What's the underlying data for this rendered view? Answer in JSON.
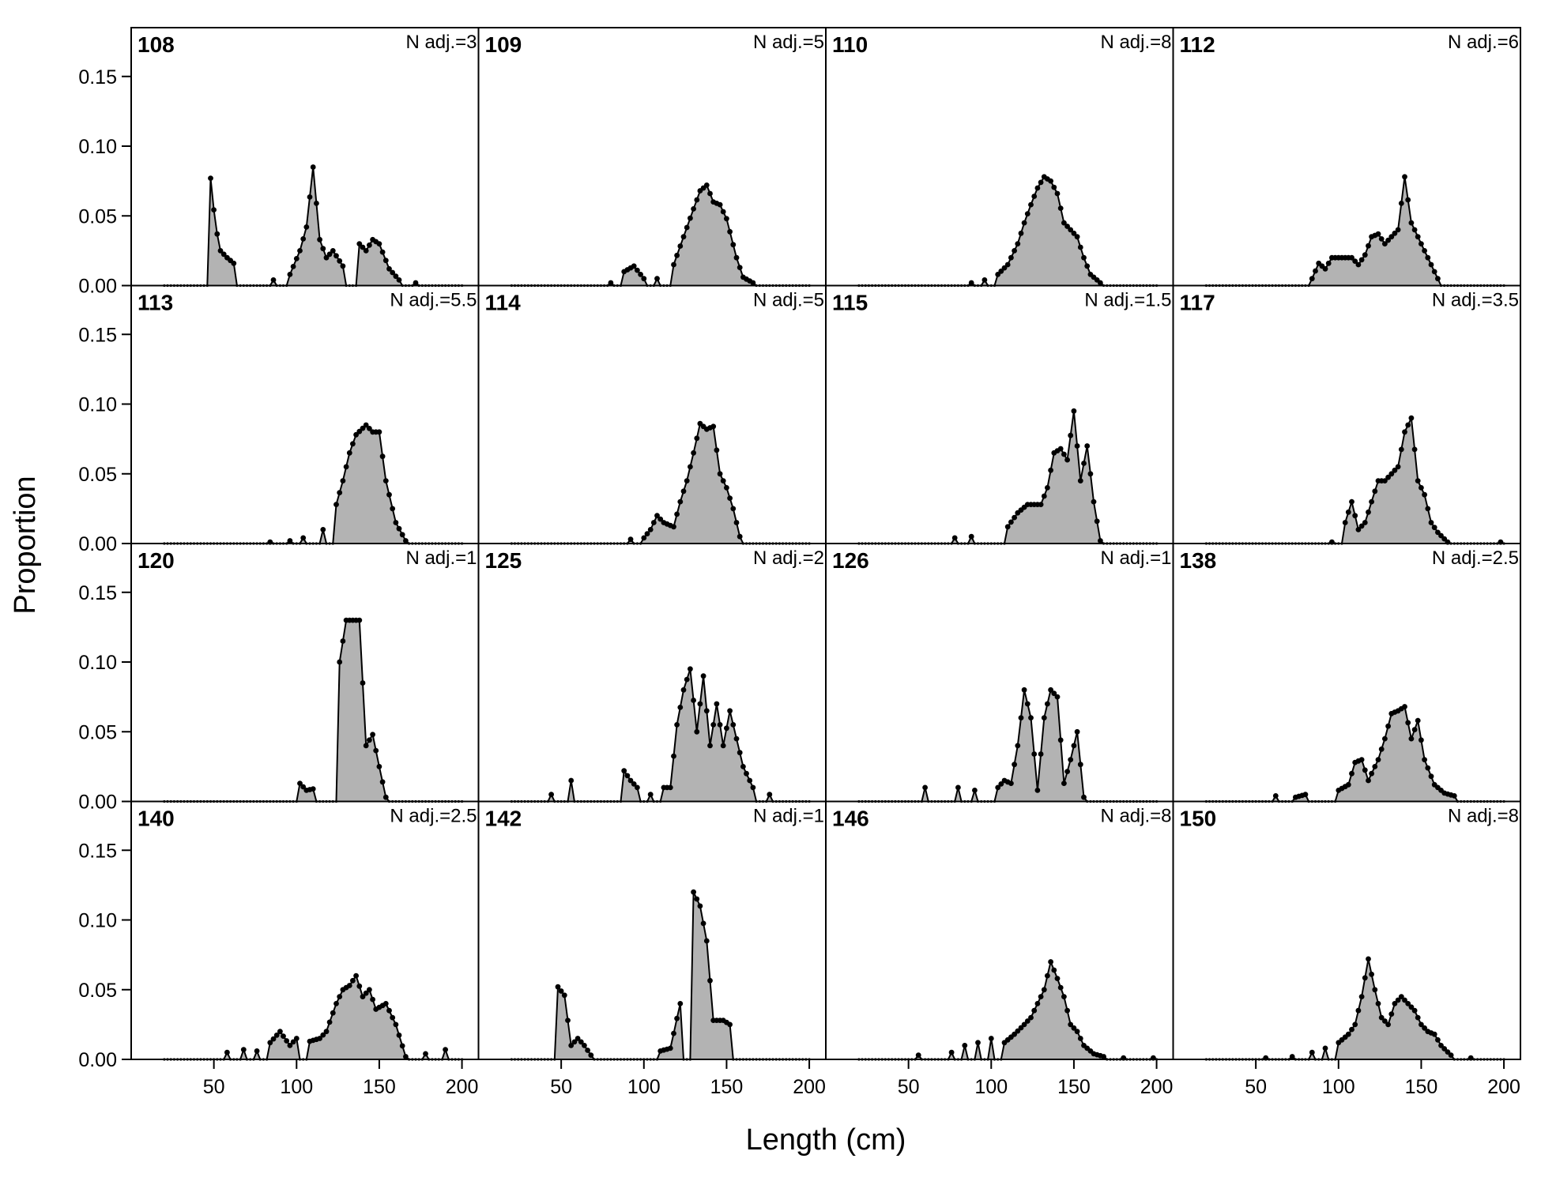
{
  "chart_data": {
    "type": "area",
    "layout": "4x4 small multiples",
    "xlabel": "Length (cm)",
    "ylabel": "Proportion",
    "xlim": [
      0,
      210
    ],
    "ylim": [
      0,
      0.185
    ],
    "x_ticks": [
      50,
      100,
      150,
      200
    ],
    "x_tick_labels": [
      "50",
      "100",
      "150",
      "200"
    ],
    "y_ticks": [
      0,
      0.05,
      0.1,
      0.15
    ],
    "y_tick_labels": [
      "0.00",
      "0.05",
      "0.10",
      "0.15"
    ],
    "x_start": 20,
    "x_end": 200,
    "x_step": 2,
    "fill_color": "#b3b3b3",
    "line_color": "#000000",
    "panels": [
      {
        "id": "108",
        "nadj": "N adj.=3",
        "peaks": [
          [
            48,
            0.077
          ],
          [
            51,
            0.043
          ],
          [
            54,
            0.025
          ],
          [
            58,
            0.02
          ],
          [
            62,
            0.016
          ],
          [
            86,
            0.004
          ],
          [
            96,
            0.008
          ],
          [
            102,
            0.025
          ],
          [
            106,
            0.042
          ],
          [
            110,
            0.085
          ],
          [
            114,
            0.033
          ],
          [
            118,
            0.02
          ],
          [
            122,
            0.025
          ],
          [
            128,
            0.014
          ],
          [
            138,
            0.03
          ],
          [
            142,
            0.025
          ],
          [
            146,
            0.033
          ],
          [
            150,
            0.03
          ],
          [
            156,
            0.012
          ],
          [
            162,
            0.004
          ],
          [
            172,
            0.002
          ]
        ]
      },
      {
        "id": "113",
        "nadj": "N adj.=5.5",
        "peaks": [
          [
            84,
            0.001
          ],
          [
            96,
            0.002
          ],
          [
            104,
            0.004
          ],
          [
            116,
            0.01
          ],
          [
            124,
            0.028
          ],
          [
            128,
            0.045
          ],
          [
            132,
            0.065
          ],
          [
            136,
            0.078
          ],
          [
            142,
            0.085
          ],
          [
            146,
            0.08
          ],
          [
            150,
            0.08
          ],
          [
            154,
            0.045
          ],
          [
            160,
            0.015
          ],
          [
            166,
            0.002
          ]
        ]
      },
      {
        "id": "120",
        "nadj": "N adj.=1",
        "peaks": [
          [
            102,
            0.013
          ],
          [
            106,
            0.008
          ],
          [
            110,
            0.009
          ],
          [
            126,
            0.1
          ],
          [
            130,
            0.13
          ],
          [
            134,
            0.13
          ],
          [
            138,
            0.13
          ],
          [
            142,
            0.04
          ],
          [
            146,
            0.048
          ],
          [
            150,
            0.025
          ],
          [
            154,
            0.003
          ]
        ]
      },
      {
        "id": "140",
        "nadj": "N adj.=2.5",
        "peaks": [
          [
            58,
            0.005
          ],
          [
            68,
            0.007
          ],
          [
            76,
            0.006
          ],
          [
            84,
            0.012
          ],
          [
            90,
            0.02
          ],
          [
            96,
            0.01
          ],
          [
            100,
            0.015
          ],
          [
            108,
            0.013
          ],
          [
            114,
            0.015
          ],
          [
            118,
            0.02
          ],
          [
            124,
            0.04
          ],
          [
            128,
            0.05
          ],
          [
            132,
            0.053
          ],
          [
            136,
            0.06
          ],
          [
            140,
            0.045
          ],
          [
            144,
            0.05
          ],
          [
            148,
            0.036
          ],
          [
            154,
            0.04
          ],
          [
            160,
            0.025
          ],
          [
            166,
            0.002
          ],
          [
            178,
            0.004
          ],
          [
            190,
            0.007
          ]
        ]
      },
      {
        "id": "109",
        "nadj": "N adj.=5",
        "peaks": [
          [
            80,
            0.002
          ],
          [
            88,
            0.01
          ],
          [
            94,
            0.014
          ],
          [
            100,
            0.005
          ],
          [
            108,
            0.005
          ],
          [
            118,
            0.015
          ],
          [
            124,
            0.035
          ],
          [
            130,
            0.055
          ],
          [
            134,
            0.068
          ],
          [
            138,
            0.072
          ],
          [
            142,
            0.06
          ],
          [
            146,
            0.058
          ],
          [
            150,
            0.048
          ],
          [
            156,
            0.02
          ],
          [
            160,
            0.006
          ],
          [
            166,
            0.002
          ]
        ]
      },
      {
        "id": "114",
        "nadj": "N adj.=5",
        "peaks": [
          [
            92,
            0.003
          ],
          [
            100,
            0.004
          ],
          [
            104,
            0.01
          ],
          [
            108,
            0.02
          ],
          [
            112,
            0.015
          ],
          [
            118,
            0.012
          ],
          [
            122,
            0.03
          ],
          [
            126,
            0.045
          ],
          [
            130,
            0.065
          ],
          [
            134,
            0.086
          ],
          [
            138,
            0.082
          ],
          [
            142,
            0.084
          ],
          [
            146,
            0.05
          ],
          [
            150,
            0.04
          ],
          [
            154,
            0.025
          ],
          [
            158,
            0.005
          ]
        ]
      },
      {
        "id": "125",
        "nadj": "N adj.=2",
        "peaks": [
          [
            44,
            0.005
          ],
          [
            56,
            0.015
          ],
          [
            88,
            0.022
          ],
          [
            92,
            0.015
          ],
          [
            96,
            0.01
          ],
          [
            104,
            0.005
          ],
          [
            112,
            0.01
          ],
          [
            116,
            0.01
          ],
          [
            120,
            0.055
          ],
          [
            124,
            0.08
          ],
          [
            128,
            0.095
          ],
          [
            132,
            0.05
          ],
          [
            136,
            0.09
          ],
          [
            140,
            0.04
          ],
          [
            144,
            0.07
          ],
          [
            148,
            0.04
          ],
          [
            152,
            0.065
          ],
          [
            156,
            0.045
          ],
          [
            160,
            0.025
          ],
          [
            166,
            0.01
          ],
          [
            176,
            0.005
          ]
        ]
      },
      {
        "id": "142",
        "nadj": "N adj.=1",
        "peaks": [
          [
            48,
            0.052
          ],
          [
            52,
            0.046
          ],
          [
            56,
            0.01
          ],
          [
            60,
            0.015
          ],
          [
            64,
            0.01
          ],
          [
            68,
            0.003
          ],
          [
            110,
            0.006
          ],
          [
            116,
            0.008
          ],
          [
            122,
            0.04
          ],
          [
            130,
            0.12
          ],
          [
            134,
            0.11
          ],
          [
            138,
            0.085
          ],
          [
            142,
            0.028
          ],
          [
            148,
            0.028
          ],
          [
            152,
            0.025
          ]
        ]
      },
      {
        "id": "110",
        "nadj": "N adj.=8",
        "peaks": [
          [
            88,
            0.002
          ],
          [
            96,
            0.004
          ],
          [
            104,
            0.008
          ],
          [
            110,
            0.015
          ],
          [
            116,
            0.03
          ],
          [
            120,
            0.045
          ],
          [
            124,
            0.058
          ],
          [
            128,
            0.07
          ],
          [
            132,
            0.078
          ],
          [
            136,
            0.075
          ],
          [
            140,
            0.066
          ],
          [
            144,
            0.045
          ],
          [
            148,
            0.04
          ],
          [
            152,
            0.035
          ],
          [
            156,
            0.02
          ],
          [
            160,
            0.008
          ],
          [
            166,
            0.002
          ]
        ]
      },
      {
        "id": "115",
        "nadj": "N adj.=1.5",
        "peaks": [
          [
            78,
            0.004
          ],
          [
            88,
            0.005
          ],
          [
            110,
            0.012
          ],
          [
            116,
            0.022
          ],
          [
            122,
            0.028
          ],
          [
            126,
            0.028
          ],
          [
            130,
            0.028
          ],
          [
            134,
            0.04
          ],
          [
            138,
            0.065
          ],
          [
            142,
            0.068
          ],
          [
            146,
            0.06
          ],
          [
            150,
            0.095
          ],
          [
            154,
            0.045
          ],
          [
            158,
            0.07
          ],
          [
            162,
            0.03
          ],
          [
            166,
            0.002
          ]
        ]
      },
      {
        "id": "126",
        "nadj": "N adj.=1",
        "peaks": [
          [
            60,
            0.01
          ],
          [
            80,
            0.01
          ],
          [
            90,
            0.008
          ],
          [
            104,
            0.01
          ],
          [
            108,
            0.015
          ],
          [
            112,
            0.013
          ],
          [
            116,
            0.04
          ],
          [
            120,
            0.08
          ],
          [
            124,
            0.06
          ],
          [
            128,
            0.008
          ],
          [
            132,
            0.06
          ],
          [
            136,
            0.08
          ],
          [
            140,
            0.075
          ],
          [
            144,
            0.013
          ],
          [
            148,
            0.03
          ],
          [
            152,
            0.05
          ],
          [
            156,
            0.003
          ]
        ]
      },
      {
        "id": "146",
        "nadj": "N adj.=8",
        "peaks": [
          [
            56,
            0.003
          ],
          [
            76,
            0.005
          ],
          [
            84,
            0.01
          ],
          [
            92,
            0.012
          ],
          [
            100,
            0.015
          ],
          [
            108,
            0.012
          ],
          [
            114,
            0.018
          ],
          [
            120,
            0.025
          ],
          [
            124,
            0.03
          ],
          [
            128,
            0.04
          ],
          [
            132,
            0.05
          ],
          [
            136,
            0.07
          ],
          [
            140,
            0.058
          ],
          [
            144,
            0.045
          ],
          [
            148,
            0.025
          ],
          [
            152,
            0.02
          ],
          [
            156,
            0.01
          ],
          [
            162,
            0.004
          ],
          [
            168,
            0.002
          ],
          [
            180,
            0.001
          ],
          [
            198,
            0.001
          ]
        ]
      },
      {
        "id": "112",
        "nadj": "N adj.=6",
        "peaks": [
          [
            84,
            0.005
          ],
          [
            88,
            0.016
          ],
          [
            92,
            0.012
          ],
          [
            96,
            0.02
          ],
          [
            100,
            0.02
          ],
          [
            104,
            0.02
          ],
          [
            108,
            0.02
          ],
          [
            112,
            0.015
          ],
          [
            116,
            0.022
          ],
          [
            120,
            0.035
          ],
          [
            124,
            0.037
          ],
          [
            128,
            0.03
          ],
          [
            132,
            0.035
          ],
          [
            136,
            0.04
          ],
          [
            140,
            0.078
          ],
          [
            144,
            0.045
          ],
          [
            148,
            0.035
          ],
          [
            152,
            0.025
          ],
          [
            156,
            0.015
          ],
          [
            160,
            0.005
          ]
        ]
      },
      {
        "id": "117",
        "nadj": "N adj.=3.5",
        "peaks": [
          [
            96,
            0.001
          ],
          [
            104,
            0.015
          ],
          [
            108,
            0.03
          ],
          [
            112,
            0.01
          ],
          [
            116,
            0.015
          ],
          [
            120,
            0.03
          ],
          [
            124,
            0.045
          ],
          [
            128,
            0.045
          ],
          [
            132,
            0.05
          ],
          [
            136,
            0.055
          ],
          [
            140,
            0.08
          ],
          [
            144,
            0.09
          ],
          [
            148,
            0.045
          ],
          [
            152,
            0.035
          ],
          [
            156,
            0.015
          ],
          [
            160,
            0.008
          ],
          [
            166,
            0.001
          ],
          [
            198,
            0.001
          ]
        ]
      },
      {
        "id": "138",
        "nadj": "N adj.=2.5",
        "peaks": [
          [
            62,
            0.004
          ],
          [
            74,
            0.003
          ],
          [
            80,
            0.005
          ],
          [
            100,
            0.008
          ],
          [
            106,
            0.012
          ],
          [
            110,
            0.028
          ],
          [
            114,
            0.03
          ],
          [
            118,
            0.015
          ],
          [
            124,
            0.03
          ],
          [
            128,
            0.045
          ],
          [
            132,
            0.063
          ],
          [
            136,
            0.065
          ],
          [
            140,
            0.068
          ],
          [
            144,
            0.045
          ],
          [
            148,
            0.058
          ],
          [
            152,
            0.03
          ],
          [
            158,
            0.012
          ],
          [
            164,
            0.006
          ],
          [
            170,
            0.004
          ]
        ]
      },
      {
        "id": "150",
        "nadj": "N adj.=8",
        "peaks": [
          [
            56,
            0.001
          ],
          [
            72,
            0.002
          ],
          [
            84,
            0.005
          ],
          [
            92,
            0.008
          ],
          [
            100,
            0.012
          ],
          [
            106,
            0.018
          ],
          [
            110,
            0.025
          ],
          [
            114,
            0.045
          ],
          [
            118,
            0.072
          ],
          [
            122,
            0.05
          ],
          [
            126,
            0.03
          ],
          [
            130,
            0.025
          ],
          [
            134,
            0.04
          ],
          [
            138,
            0.045
          ],
          [
            142,
            0.04
          ],
          [
            146,
            0.035
          ],
          [
            150,
            0.025
          ],
          [
            154,
            0.02
          ],
          [
            158,
            0.018
          ],
          [
            162,
            0.01
          ],
          [
            168,
            0.003
          ],
          [
            180,
            0.001
          ]
        ]
      }
    ]
  }
}
